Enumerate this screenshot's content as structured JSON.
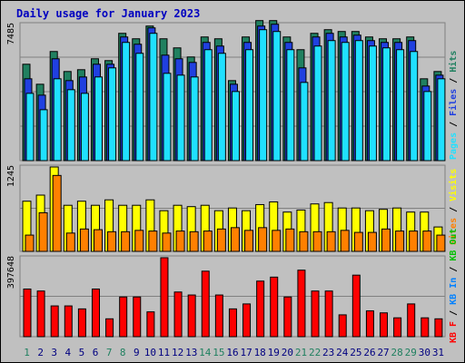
{
  "chart_data": [
    {
      "type": "bar",
      "title": "Daily usage for January 2023",
      "categories": [
        "1",
        "2",
        "3",
        "4",
        "5",
        "6",
        "7",
        "8",
        "9",
        "10",
        "11",
        "12",
        "13",
        "14",
        "15",
        "16",
        "17",
        "18",
        "19",
        "20",
        "21",
        "22",
        "23",
        "24",
        "25",
        "26",
        "27",
        "28",
        "29",
        "30",
        "31"
      ],
      "weekend_days": [
        "1",
        "7",
        "8",
        "14",
        "15",
        "21",
        "22",
        "28",
        "29"
      ],
      "ylabel_max": "7485",
      "legend": [
        "Pages",
        "Files",
        "Hits"
      ],
      "colors": {
        "hits": "#208060",
        "files": "#2040e0",
        "pages": "#20e0ff"
      },
      "series": [
        {
          "name": "Hits",
          "values": [
            5300,
            4200,
            6000,
            4900,
            5000,
            5600,
            5500,
            7000,
            6700,
            7400,
            6700,
            6200,
            5700,
            6800,
            6700,
            4400,
            6800,
            7700,
            7700,
            6800,
            6100,
            7000,
            7200,
            7100,
            7100,
            6800,
            6700,
            6700,
            6800,
            4500,
            4900
          ]
        },
        {
          "name": "Files",
          "values": [
            4500,
            3600,
            5600,
            4400,
            4600,
            5300,
            5300,
            6800,
            6400,
            7300,
            5800,
            5600,
            5400,
            6500,
            6300,
            4200,
            6500,
            7400,
            7500,
            6500,
            5100,
            6800,
            7000,
            6800,
            6900,
            6600,
            6500,
            6500,
            6600,
            4100,
            4700
          ]
        },
        {
          "name": "Pages",
          "values": [
            3700,
            2800,
            4500,
            3900,
            3700,
            4600,
            5100,
            6500,
            5900,
            7000,
            4800,
            4700,
            4600,
            6100,
            5900,
            3800,
            6100,
            7200,
            7100,
            6100,
            4300,
            6300,
            6600,
            6500,
            6600,
            6300,
            6200,
            6100,
            6000,
            3800,
            4500
          ]
        }
      ]
    },
    {
      "type": "bar",
      "ylabel_max": "1245",
      "legend": [
        "Sites",
        "Visits"
      ],
      "colors": {
        "visits": "#ffff00",
        "sites": "#ff8000"
      },
      "series": [
        {
          "name": "Visits",
          "values": [
            740,
            830,
            1245,
            680,
            740,
            680,
            760,
            680,
            680,
            760,
            600,
            680,
            660,
            680,
            600,
            640,
            600,
            690,
            730,
            580,
            610,
            700,
            720,
            640,
            640,
            600,
            620,
            640,
            580,
            580,
            360
          ]
        },
        {
          "name": "Sites",
          "values": [
            240,
            570,
            1120,
            270,
            330,
            320,
            290,
            290,
            310,
            300,
            270,
            300,
            290,
            300,
            330,
            350,
            310,
            350,
            310,
            330,
            290,
            290,
            290,
            310,
            280,
            280,
            330,
            300,
            300,
            300,
            240
          ]
        }
      ]
    },
    {
      "type": "bar",
      "ylabel_max": "397648",
      "legend": [
        "KB F",
        "KB In",
        "KB Out"
      ],
      "colors": {
        "kbf": "#ff0000",
        "kbin": "#0080ff",
        "kbout": "#00c000"
      },
      "series": [
        {
          "name": "KB F",
          "values": [
            240000,
            230000,
            155000,
            155000,
            140000,
            240000,
            90000,
            200000,
            200000,
            125000,
            397648,
            225000,
            210000,
            330000,
            210000,
            140000,
            165000,
            280000,
            300000,
            200000,
            335000,
            230000,
            230000,
            110000,
            310000,
            130000,
            120000,
            95000,
            165000,
            95000,
            90000
          ]
        }
      ]
    }
  ]
}
